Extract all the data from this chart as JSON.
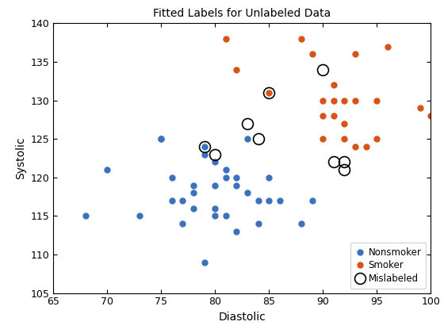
{
  "title": "Fitted Labels for Unlabeled Data",
  "xlabel": "Diastolic",
  "ylabel": "Systolic",
  "xlim": [
    65,
    100
  ],
  "ylim": [
    105,
    140
  ],
  "xticks": [
    65,
    70,
    75,
    80,
    85,
    90,
    95,
    100
  ],
  "yticks": [
    105,
    110,
    115,
    120,
    125,
    130,
    135,
    140
  ],
  "nonsmoker_x": [
    68,
    70,
    73,
    75,
    75,
    76,
    76,
    77,
    77,
    78,
    78,
    78,
    79,
    79,
    79,
    80,
    80,
    80,
    80,
    81,
    81,
    81,
    82,
    82,
    82,
    83,
    83,
    84,
    84,
    85,
    85,
    86,
    88,
    89
  ],
  "nonsmoker_y": [
    115,
    121,
    115,
    125,
    125,
    120,
    117,
    117,
    114,
    119,
    118,
    116,
    124,
    123,
    109,
    122,
    119,
    116,
    115,
    121,
    120,
    115,
    120,
    119,
    113,
    125,
    118,
    117,
    114,
    120,
    117,
    117,
    114,
    117
  ],
  "smoker_x": [
    81,
    82,
    85,
    88,
    89,
    90,
    90,
    90,
    91,
    91,
    91,
    92,
    92,
    92,
    93,
    93,
    93,
    94,
    95,
    95,
    96,
    99,
    100
  ],
  "smoker_y": [
    138,
    134,
    131,
    138,
    136,
    130,
    128,
    125,
    132,
    130,
    128,
    130,
    127,
    125,
    136,
    130,
    124,
    124,
    130,
    125,
    137,
    129,
    128
  ],
  "mislabeled_x": [
    79,
    80,
    83,
    84,
    85,
    90,
    91,
    92,
    92
  ],
  "mislabeled_y": [
    124,
    123,
    127,
    125,
    131,
    134,
    122,
    122,
    121
  ],
  "nonsmoker_color": "#3C72BD",
  "smoker_color": "#D95319",
  "mislabeled_edge_color": "black",
  "legend_loc": "lower right",
  "markersize": 5,
  "mislabeled_markersize": 10
}
